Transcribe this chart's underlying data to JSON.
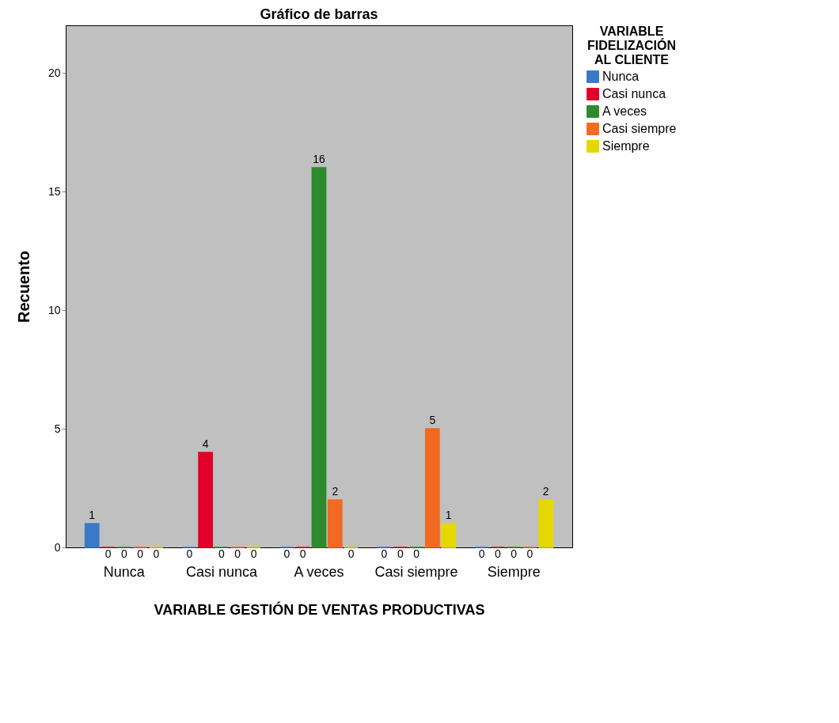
{
  "chart_data": {
    "type": "bar",
    "title": "Gráfico de barras",
    "xlabel": "VARIABLE GESTIÓN DE VENTAS PRODUCTIVAS",
    "ylabel": "Recuento",
    "legend_title": "VARIABLE FIDELIZACIÓN AL CLIENTE",
    "categories": [
      "Nunca",
      "Casi nunca",
      "A veces",
      "Casi siempre",
      "Siempre"
    ],
    "series": [
      {
        "name": "Nunca",
        "color": "#3a78c9",
        "values": [
          1,
          0,
          0,
          0,
          0
        ]
      },
      {
        "name": "Casi nunca",
        "color": "#e0002a",
        "values": [
          0,
          4,
          0,
          0,
          0
        ]
      },
      {
        "name": "A veces",
        "color": "#2d8a2d",
        "values": [
          0,
          0,
          16,
          0,
          0
        ]
      },
      {
        "name": "Casi siempre",
        "color": "#f26a21",
        "values": [
          0,
          0,
          2,
          5,
          0
        ]
      },
      {
        "name": "Siempre",
        "color": "#e5d800",
        "values": [
          0,
          0,
          0,
          1,
          2
        ]
      }
    ],
    "ylim": [
      0,
      22
    ],
    "yticks": [
      0,
      5,
      10,
      15,
      20
    ],
    "grid": false,
    "legend": "top right",
    "data_labels": true
  }
}
